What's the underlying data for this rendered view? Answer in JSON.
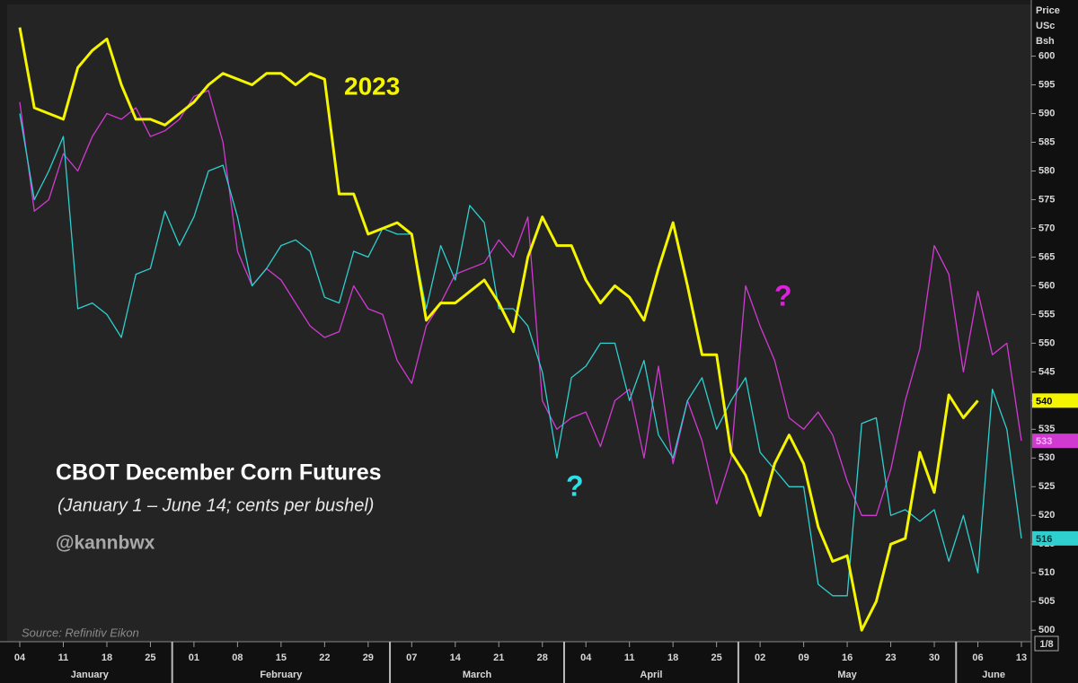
{
  "chart_data": {
    "type": "line",
    "title": "CBOT December Corn Futures",
    "subtitle": "(January 1 – June 14; cents per bushel)",
    "credit": "@kannbwx",
    "source": "Source: Refinitiv Eikon",
    "y_axis_label": [
      "Price",
      "USc",
      "Bsh"
    ],
    "corner_label": "1/8",
    "months": [
      "January",
      "February",
      "March",
      "April",
      "May",
      "June"
    ],
    "categories": [
      "04",
      null,
      null,
      "11",
      null,
      null,
      "18",
      null,
      null,
      "25",
      null,
      null,
      "01",
      null,
      null,
      "08",
      null,
      null,
      "15",
      null,
      null,
      "22",
      null,
      null,
      "29",
      null,
      null,
      "07",
      null,
      null,
      "14",
      null,
      null,
      "21",
      null,
      null,
      "28",
      null,
      null,
      "04",
      null,
      null,
      "11",
      null,
      null,
      "18",
      null,
      null,
      "25",
      null,
      null,
      "02",
      null,
      null,
      "09",
      null,
      null,
      "16",
      null,
      null,
      "23",
      null,
      null,
      "30",
      null,
      null,
      "06",
      null,
      null,
      "13"
    ],
    "series": [
      {
        "name": "2023",
        "color": "#f5f500",
        "end_value": 540,
        "values": [
          605,
          591,
          590,
          589,
          598,
          601,
          603,
          595,
          589,
          589,
          588,
          590,
          592,
          595,
          597,
          596,
          595,
          597,
          597,
          595,
          597,
          596,
          576,
          576,
          569,
          570,
          571,
          569,
          554,
          557,
          557,
          559,
          561,
          557,
          552,
          565,
          572,
          567,
          567,
          561,
          557,
          560,
          558,
          554,
          563,
          571,
          560,
          548,
          548,
          531,
          527,
          520,
          529,
          534,
          529,
          518,
          512,
          513,
          500,
          505,
          515,
          516,
          531,
          524,
          541,
          537,
          540,
          null,
          null,
          null
        ]
      },
      {
        "color": "#2fcfcf",
        "end_value": 516,
        "values": [
          590,
          575,
          580,
          586,
          556,
          557,
          555,
          551,
          562,
          563,
          573,
          567,
          572,
          580,
          581,
          572,
          560,
          563,
          567,
          568,
          566,
          558,
          557,
          566,
          565,
          570,
          569,
          569,
          556,
          567,
          561,
          574,
          571,
          556,
          556,
          553,
          545,
          530,
          544,
          546,
          550,
          550,
          540,
          547,
          534,
          530,
          540,
          544,
          535,
          540,
          544,
          531,
          528,
          525,
          525,
          508,
          506,
          506,
          536,
          537,
          520,
          521,
          519,
          521,
          512,
          520,
          510,
          542,
          535,
          516
        ]
      },
      {
        "color": "#d13ad1",
        "end_value": 533,
        "values": [
          592,
          573,
          575,
          583,
          580,
          586,
          590,
          589,
          591,
          586,
          587,
          589,
          593,
          594,
          585,
          566,
          560,
          563,
          561,
          557,
          553,
          551,
          552,
          560,
          556,
          555,
          547,
          543,
          553,
          557,
          562,
          563,
          564,
          568,
          565,
          572,
          540,
          535,
          537,
          538,
          532,
          540,
          542,
          530,
          546,
          529,
          540,
          533,
          522,
          530,
          560,
          553,
          547,
          537,
          535,
          538,
          534,
          526,
          520,
          520,
          528,
          540,
          549,
          567,
          562,
          545,
          559,
          548,
          550,
          533
        ]
      }
    ],
    "annotations": [
      {
        "text": "2023",
        "color": "#f5f500"
      },
      {
        "text": "?",
        "color": "#2fdfe8"
      },
      {
        "text": "?",
        "color": "#e020e0"
      }
    ],
    "ylim": [
      498,
      609
    ],
    "yticks": [
      500,
      505,
      510,
      515,
      520,
      525,
      530,
      535,
      540,
      545,
      550,
      555,
      560,
      565,
      570,
      575,
      580,
      585,
      590,
      595,
      600
    ],
    "grid": false
  }
}
